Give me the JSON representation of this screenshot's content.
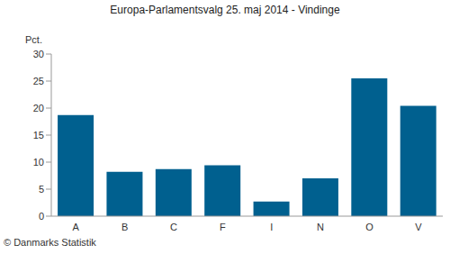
{
  "chart_data": {
    "type": "bar",
    "title": "Europa-Parlamentsvalg 25. maj 2014 - Vindinge",
    "y_label": "Pct.",
    "annotations": [
      "© Danmarks Statistik"
    ],
    "categories": [
      "A",
      "B",
      "C",
      "F",
      "I",
      "N",
      "O",
      "V"
    ],
    "values": [
      18.7,
      8.2,
      8.7,
      9.4,
      2.7,
      7.0,
      25.5,
      20.4
    ],
    "color": "#00608f",
    "ylim": [
      0,
      30
    ],
    "yticks": [
      0,
      5,
      10,
      15,
      20,
      25,
      30
    ],
    "grid": false,
    "data_labels": false
  }
}
